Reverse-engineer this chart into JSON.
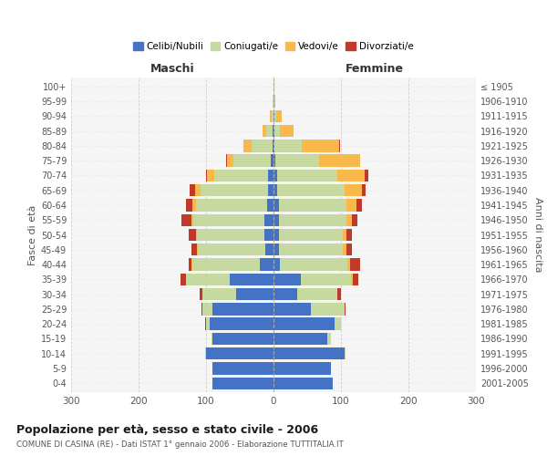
{
  "age_groups": [
    "0-4",
    "5-9",
    "10-14",
    "15-19",
    "20-24",
    "25-29",
    "30-34",
    "35-39",
    "40-44",
    "45-49",
    "50-54",
    "55-59",
    "60-64",
    "65-69",
    "70-74",
    "75-79",
    "80-84",
    "85-89",
    "90-94",
    "95-99",
    "100+"
  ],
  "birth_years": [
    "2001-2005",
    "1996-2000",
    "1991-1995",
    "1986-1990",
    "1981-1985",
    "1976-1980",
    "1971-1975",
    "1966-1970",
    "1961-1965",
    "1956-1960",
    "1951-1955",
    "1946-1950",
    "1941-1945",
    "1936-1940",
    "1931-1935",
    "1926-1930",
    "1921-1925",
    "1916-1920",
    "1911-1915",
    "1906-1910",
    "≤ 1905"
  ],
  "males": {
    "celibe": [
      90,
      90,
      100,
      90,
      95,
      90,
      55,
      65,
      20,
      12,
      13,
      14,
      10,
      8,
      8,
      4,
      2,
      1,
      0,
      0,
      0
    ],
    "coniugato": [
      0,
      0,
      1,
      2,
      5,
      15,
      50,
      65,
      100,
      100,
      100,
      105,
      105,
      100,
      80,
      55,
      30,
      10,
      3,
      1,
      0
    ],
    "vedovo": [
      0,
      0,
      0,
      0,
      0,
      0,
      0,
      0,
      1,
      2,
      2,
      3,
      5,
      8,
      10,
      10,
      12,
      5,
      2,
      0,
      0
    ],
    "divorziato": [
      0,
      0,
      0,
      0,
      1,
      2,
      5,
      8,
      5,
      8,
      10,
      14,
      10,
      8,
      2,
      1,
      1,
      0,
      0,
      0,
      0
    ]
  },
  "females": {
    "nubile": [
      88,
      85,
      105,
      80,
      90,
      55,
      35,
      40,
      10,
      8,
      8,
      8,
      8,
      6,
      5,
      3,
      2,
      2,
      1,
      0,
      0
    ],
    "coniugata": [
      0,
      0,
      2,
      5,
      10,
      50,
      60,
      75,
      100,
      95,
      95,
      100,
      100,
      100,
      90,
      65,
      40,
      8,
      3,
      1,
      0
    ],
    "vedova": [
      0,
      0,
      0,
      0,
      0,
      0,
      0,
      2,
      3,
      5,
      5,
      8,
      15,
      25,
      40,
      60,
      55,
      20,
      8,
      2,
      1
    ],
    "divorziata": [
      0,
      0,
      0,
      0,
      0,
      2,
      5,
      8,
      15,
      8,
      8,
      8,
      8,
      5,
      5,
      1,
      1,
      0,
      0,
      0,
      0
    ]
  },
  "colors": {
    "celibe": "#4472c4",
    "coniugato": "#c5d9a0",
    "vedovo": "#f9b84a",
    "divorziato": "#c0392b"
  },
  "legend_labels": [
    "Celibi/Nubili",
    "Coniugati/e",
    "Vedovi/e",
    "Divorziati/e"
  ],
  "title": "Popolazione per età, sesso e stato civile - 2006",
  "subtitle": "COMUNE DI CASINA (RE) - Dati ISTAT 1° gennaio 2006 - Elaborazione TUTTITALIA.IT",
  "xlabel_left": "Maschi",
  "xlabel_right": "Femmine",
  "ylabel_left": "Fasce di età",
  "ylabel_right": "Anni di nascita",
  "xlim": 300,
  "bg_color": "#f5f5f5",
  "fig_bg": "#ffffff"
}
